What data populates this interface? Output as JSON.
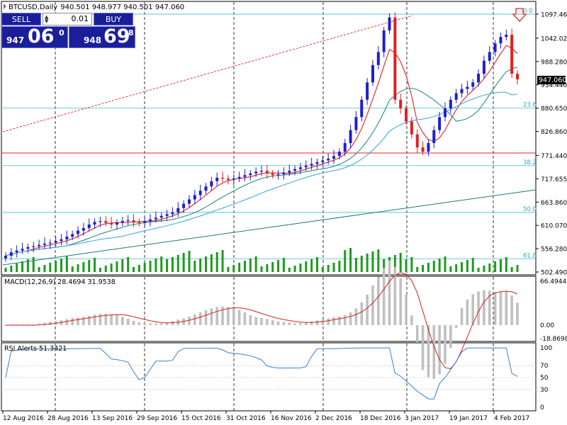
{
  "header": {
    "symbol_info": "BTCUSD,Daily",
    "ohlc": "940.501 948.977 940.501 947.060"
  },
  "trade_panel": {
    "sell_label": "SELL",
    "buy_label": "BUY",
    "lot": "0.01",
    "sell_price": {
      "small": "947",
      "big": "06",
      "sup": "0"
    },
    "buy_price": {
      "small": "948",
      "big": "69",
      "sup": "8"
    }
  },
  "price_axis": {
    "ticks": [
      "1097.460",
      "1042.020",
      "988.280",
      "934.440",
      "880.650",
      "826.860",
      "771.440",
      "717.655",
      "663.860",
      "610.070",
      "556.280",
      "502.490"
    ],
    "current_price": "947.060"
  },
  "fibonacci": {
    "levels": [
      "0.0",
      "23.6",
      "38.2",
      "50.0",
      "61.8"
    ],
    "colors": {
      "level_line": "#56c6d6",
      "label": "#2aa7c4"
    }
  },
  "dates": [
    "12 Aug 2016",
    "28 Aug 2016",
    "13 Sep 2016",
    "29 Sep 2016",
    "15 Oct 2016",
    "31 Oct 2016",
    "16 Nov 2016",
    "2 Dec 2016",
    "18 Dec 2016",
    "3 Jan 2017",
    "19 Jan 2017",
    "4 Feb 2017"
  ],
  "macd": {
    "label": "MACD(12,26,9) 28.4694 31.9538",
    "ticks": [
      "66.4944",
      "0.00",
      "-18.8698"
    ]
  },
  "rsi": {
    "label": "RSI Alerts 51.3421",
    "ticks": [
      "100",
      "70",
      "50",
      "30",
      "0"
    ]
  },
  "colors": {
    "bull_candle": "#1f1fcc",
    "bear_candle": "#e02020",
    "volume": "#1e9a1e",
    "ma_fast": "#e02020",
    "ma_mid": "#2a8c8c",
    "ma_slow": "#4aa8e0",
    "horizontal_red": "#e02020",
    "trend_teal": "#1d7a7a",
    "rsi_line": "#3a7fd0",
    "macd_hist": "#c0c0c0",
    "macd_signal": "#d02020"
  },
  "chart_data": {
    "type": "line",
    "closes": [
      540,
      548,
      552,
      556,
      560,
      562,
      565,
      568,
      570,
      574,
      578,
      584,
      590,
      598,
      604,
      612,
      618,
      620,
      616,
      612,
      616,
      620,
      622,
      618,
      616,
      620,
      624,
      628,
      632,
      636,
      640,
      650,
      660,
      670,
      680,
      690,
      700,
      712,
      720,
      718,
      715,
      718,
      722,
      726,
      730,
      734,
      736,
      730,
      726,
      728,
      732,
      736,
      740,
      744,
      748,
      752,
      756,
      760,
      764,
      770,
      780,
      800,
      830,
      860,
      900,
      940,
      980,
      1010,
      1060,
      1090,
      900,
      880,
      850,
      820,
      790,
      780,
      800,
      830,
      860,
      880,
      900,
      915,
      925,
      930,
      940,
      960,
      990,
      1010,
      1030,
      1045,
      1050,
      960,
      947
    ]
  }
}
